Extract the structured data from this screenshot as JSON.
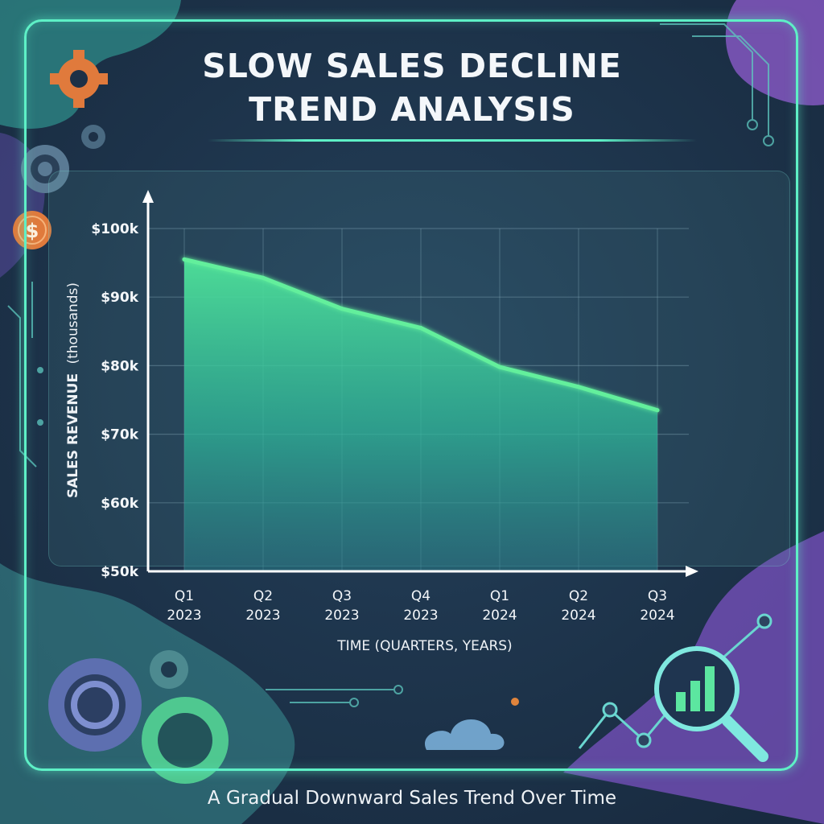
{
  "title_line1": "SLOW SALES DECLINE",
  "title_line2": "TREND ANALYSIS",
  "caption": "A Gradual Downward Sales Trend Over Time",
  "colors": {
    "accent": "#5ef0c6",
    "line": "#63ef9c",
    "background": "#1d3046",
    "text": "#f4f7fa"
  },
  "decor": {
    "dollar_symbol": "$"
  },
  "chart_data": {
    "type": "area",
    "title": "SLOW SALES DECLINE TREND ANALYSIS",
    "xlabel": "TIME (QUARTERS, YEARS)",
    "ylabel_bold": "SALES REVENUE",
    "ylabel_rest": "(thousands)",
    "categories": [
      [
        "Q1",
        "2023"
      ],
      [
        "Q2",
        "2023"
      ],
      [
        "Q3",
        "2023"
      ],
      [
        "Q4",
        "2023"
      ],
      [
        "Q1",
        "2024"
      ],
      [
        "Q2",
        "2024"
      ],
      [
        "Q3",
        "2024"
      ]
    ],
    "values": [
      95.5,
      92.8,
      88.3,
      85.5,
      79.8,
      76.9,
      73.5
    ],
    "ylim": [
      50,
      100
    ],
    "yticks": [
      100,
      90,
      80,
      70,
      60,
      50
    ],
    "ytick_labels": [
      "$100k",
      "$90k",
      "$80k",
      "$70k",
      "$60k",
      "$50k"
    ],
    "grid": true
  }
}
